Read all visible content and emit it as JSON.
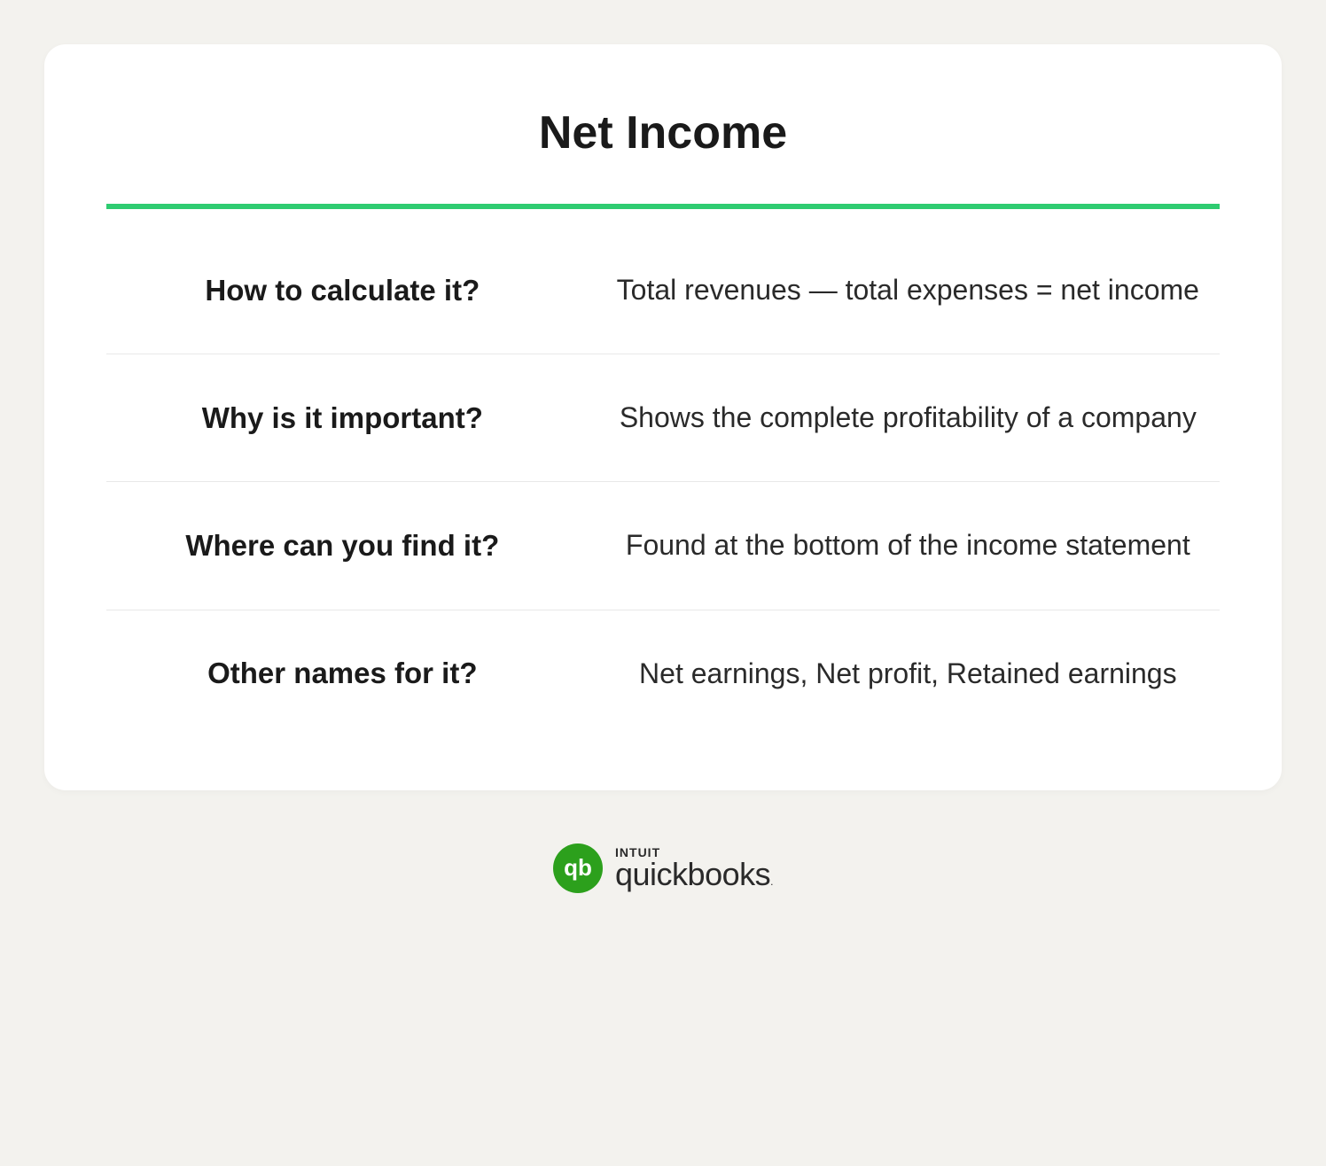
{
  "card": {
    "title": "Net Income",
    "accent_color": "#2ecc71",
    "background": "#ffffff",
    "rows": [
      {
        "question": "How to calculate it?",
        "answer": "Total revenues — total expenses = net income"
      },
      {
        "question": "Why is it important?",
        "answer": "Shows the complete profitability of a company"
      },
      {
        "question": "Where can you find it?",
        "answer": "Found at the bottom of the income statement"
      },
      {
        "question": "Other names for it?",
        "answer": "Net earnings, Net profit, Retained earnings"
      }
    ]
  },
  "logo": {
    "badge_text": "qb",
    "badge_color": "#2ca01c",
    "line1": "INTUIT",
    "line2": "quickbooks"
  },
  "page": {
    "background": "#f3f2ee"
  }
}
